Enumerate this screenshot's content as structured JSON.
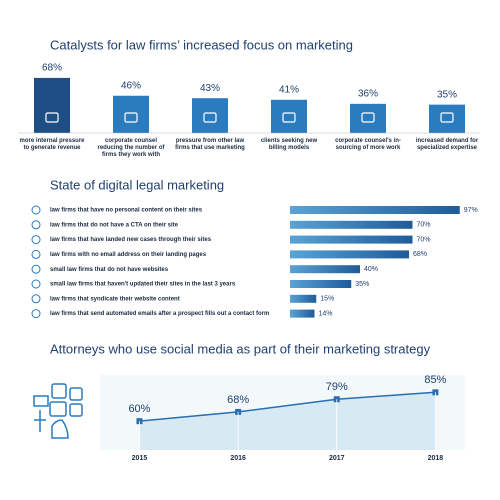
{
  "chart_data": [
    {
      "type": "bar",
      "title": "Catalysts for law firms’ increased focus on marketing",
      "categories": [
        "more internal pressure to generate revenue",
        "corporate counsel reducing the number of firms they work with",
        "pressure from other law firms that use marketing",
        "clients seeking new billing models",
        "corporate counsel's in-sourcing of more work",
        "increased demand for specialized expertise"
      ],
      "values": [
        68,
        46,
        43,
        41,
        36,
        35
      ],
      "value_labels": [
        "68%",
        "46%",
        "43%",
        "41%",
        "36%",
        "35%"
      ],
      "colors": [
        "#1d4f86",
        "#2b7bbf",
        "#2b7bbf",
        "#2b7bbf",
        "#2b7bbf",
        "#2b7bbf"
      ]
    },
    {
      "type": "barh",
      "title": "State of digital legal marketing",
      "categories": [
        "law firms that have no personal content on their sites",
        "law firms that do not have a CTA on their site",
        "law firms that have landed new cases through their sites",
        "law firms with no email address on their landing pages",
        "small law firms that do not have websites",
        "small law firms that haven't updated their sites in the last 3 years",
        "law firms that syndicate their website content",
        "law firms that send automated emails after a prospect fills out a contact form"
      ],
      "values": [
        97,
        70,
        70,
        68,
        40,
        35,
        15,
        14
      ],
      "value_labels": [
        "97%",
        "70%",
        "70%",
        "68%",
        "40%",
        "35%",
        "15%",
        "14%"
      ],
      "color": "#1f5b99"
    },
    {
      "type": "line",
      "title": "Attorneys who use social media as part of their marketing strategy",
      "x": [
        2015,
        2016,
        2017,
        2018
      ],
      "values": [
        60,
        68,
        79,
        85
      ],
      "value_labels": [
        "60%",
        "68%",
        "79%",
        "85%"
      ],
      "xlim": [
        2014.6,
        2018.3
      ],
      "ylim": [
        35,
        100
      ],
      "color": "#2a6db0",
      "fill": "#cfe6f2"
    }
  ]
}
